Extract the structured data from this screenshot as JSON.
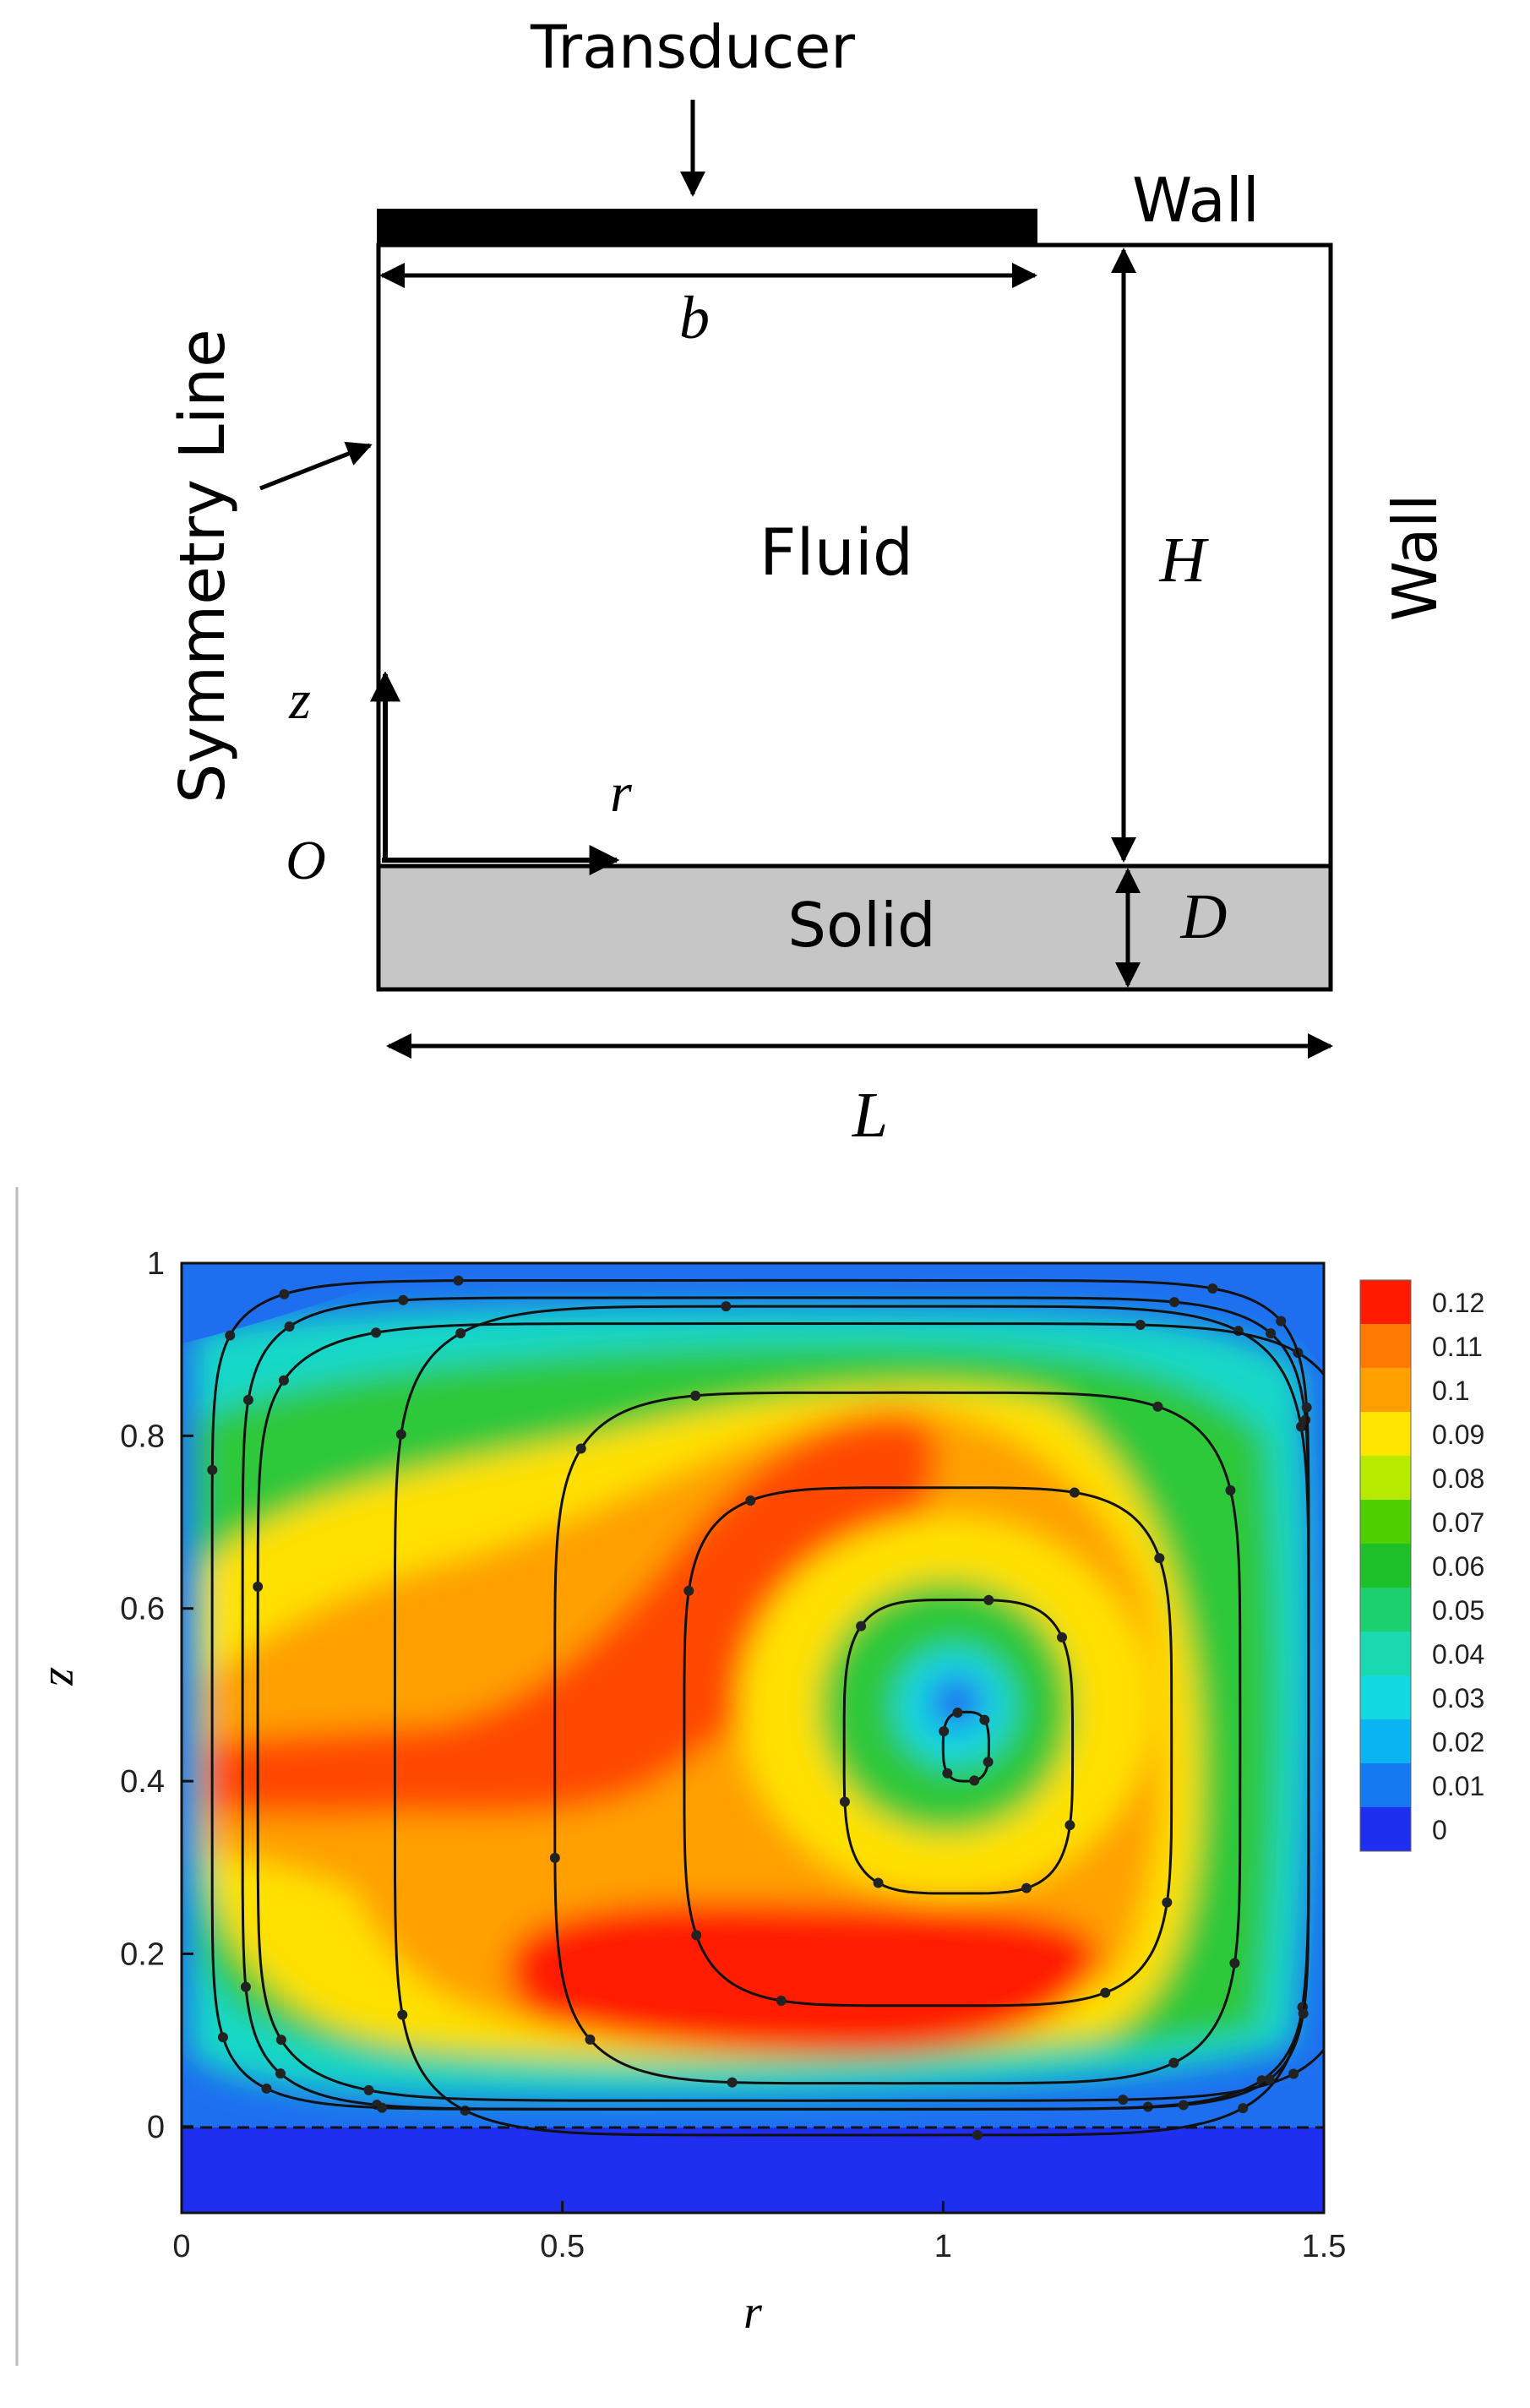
{
  "schematic": {
    "labels": {
      "transducer": "Transducer",
      "wall_top": "Wall",
      "wall_right": "Wall",
      "symmetry_line": "Symmetry Line",
      "fluid": "Fluid",
      "solid": "Solid",
      "b": "b",
      "H": "H",
      "D": "D",
      "L": "L",
      "z": "z",
      "r": "r",
      "origin": "O"
    },
    "colors": {
      "transducer": "#000000",
      "solid_fill": "#c6c6c6",
      "outline": "#000000"
    }
  },
  "chart_data": {
    "type": "heatmap",
    "title": "",
    "xlabel": "r",
    "ylabel": "z",
    "xlim": [
      0,
      1.5
    ],
    "ylim": [
      -0.1,
      1.0
    ],
    "x_ticks": [
      "0",
      "0.5",
      "1",
      "1.5"
    ],
    "y_ticks": [
      "0",
      "0.2",
      "0.4",
      "0.6",
      "0.8",
      "1"
    ],
    "fluid_solid_interface_z": 0,
    "vortex_center": {
      "r": 1.02,
      "z": 0.44
    },
    "max_value": 0.12,
    "grid": false,
    "legend_position": "right",
    "colorbar": {
      "levels": [
        "0.12",
        "0.11",
        "0.1",
        "0.09",
        "0.08",
        "0.07",
        "0.06",
        "0.05",
        "0.04",
        "0.03",
        "0.02",
        "0.01",
        "0"
      ],
      "colors": [
        "#ff1a00",
        "#ff7a00",
        "#ffa000",
        "#ffe400",
        "#b8ea00",
        "#4ed000",
        "#1ec02a",
        "#1cd070",
        "#1ad9b0",
        "#12d8e0",
        "#0ab4f2",
        "#1478f0",
        "#1f2ff0"
      ]
    },
    "streamlines": [
      {
        "cr": 1.03,
        "cz": 0.44,
        "ar": 0.03,
        "az": 0.04
      },
      {
        "cr": 1.02,
        "cz": 0.44,
        "ar": 0.15,
        "az": 0.17
      },
      {
        "cr": 0.98,
        "cz": 0.44,
        "ar": 0.32,
        "az": 0.3
      },
      {
        "cr": 0.94,
        "cz": 0.45,
        "ar": 0.45,
        "az": 0.4
      },
      {
        "cr": 0.88,
        "cz": 0.47,
        "ar": 0.6,
        "az": 0.48
      },
      {
        "cr": 0.82,
        "cz": 0.48,
        "ar": 0.72,
        "az": 0.45
      },
      {
        "cr": 0.78,
        "cz": 0.49,
        "ar": 0.7,
        "az": 0.47
      },
      {
        "cr": 0.76,
        "cz": 0.5,
        "ar": 0.72,
        "az": 0.48
      }
    ]
  }
}
